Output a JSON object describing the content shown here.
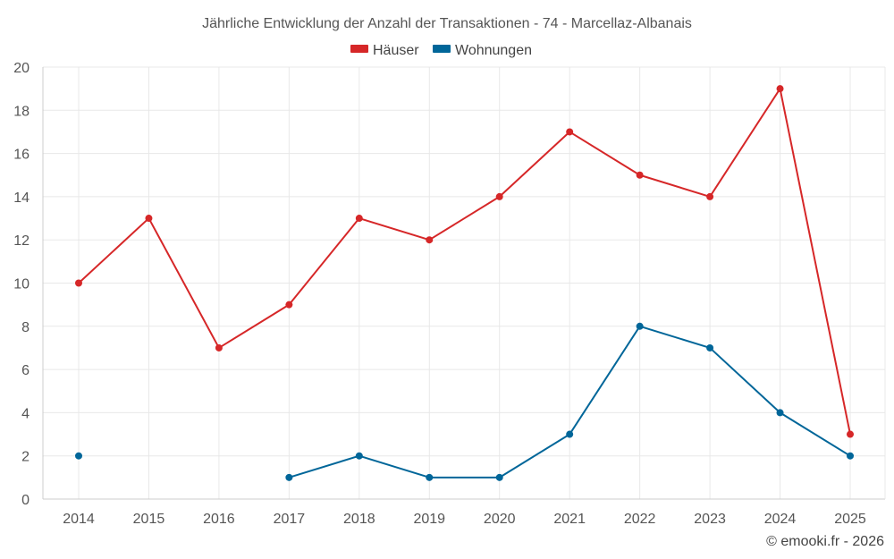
{
  "chart_data": {
    "type": "line",
    "title": "Jährliche Entwicklung der Anzahl der Transaktionen - 74 - Marcellaz-Albanais",
    "x": [
      "2014",
      "2015",
      "2016",
      "2017",
      "2018",
      "2019",
      "2020",
      "2021",
      "2022",
      "2023",
      "2024",
      "2025"
    ],
    "ylim": [
      0,
      20
    ],
    "yticks": [
      "0",
      "2",
      "4",
      "6",
      "8",
      "10",
      "12",
      "14",
      "16",
      "18",
      "20"
    ],
    "grid": true,
    "legend_position": "top-center",
    "series": [
      {
        "name": "Häuser",
        "color": "#d62728",
        "values": [
          10,
          13,
          7,
          9,
          13,
          12,
          14,
          17,
          15,
          14,
          19,
          3
        ]
      },
      {
        "name": "Wohnungen",
        "color": "#006699",
        "values": [
          2,
          null,
          null,
          1,
          2,
          1,
          1,
          3,
          8,
          7,
          4,
          2
        ]
      }
    ],
    "credit": "© emooki.fr - 2026"
  }
}
